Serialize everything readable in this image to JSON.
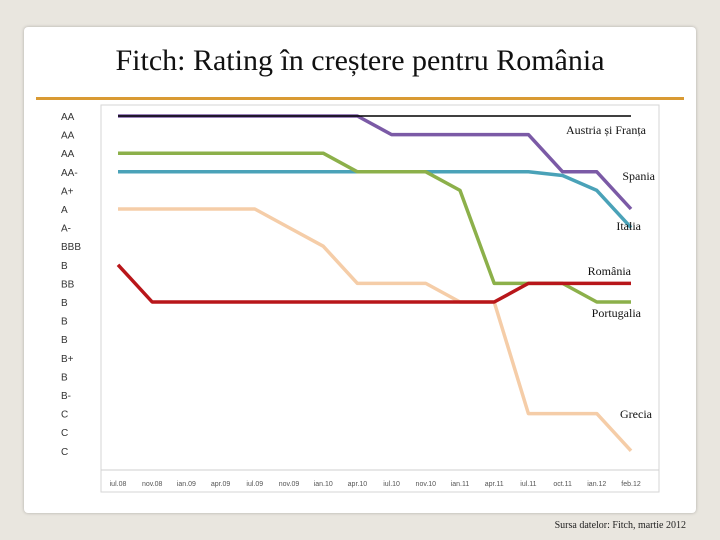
{
  "slide": {
    "title": "Fitch: Rating în creștere pentru România",
    "source": "Sursa datelor: Fitch, martie 2012"
  },
  "colors": {
    "rule": "#d99a33",
    "series": {
      "Austria și Franța": "#000000",
      "Spania": "#7b5aa6",
      "Italia": "#4aa2b8",
      "Portugalia": "#8cb04a",
      "România": "#b8161a",
      "Grecia": "#f5cda8"
    }
  },
  "chart_data": {
    "type": "line",
    "y_tick_labels": [
      "AA",
      "AA",
      "AA",
      "AA-",
      "A+",
      "A",
      "A-",
      "BBB",
      "B",
      "BB",
      "B",
      "B",
      "B",
      "B+",
      "B",
      "B-",
      "C",
      "C",
      "C"
    ],
    "x_tick_labels": [
      "iul.08",
      "nov.08",
      "ian.09",
      "apr.09",
      "iul.09",
      "nov.09",
      "ian.10",
      "apr.10",
      "iul.10",
      "nov.10",
      "ian.11",
      "apr.11",
      "iul.11",
      "oct.11",
      "ian.12",
      "feb.12"
    ],
    "grid": false,
    "legend": "series labels placed at line ends",
    "series": [
      {
        "name": "Austria și Franța",
        "values": [
          0,
          0,
          0,
          0,
          0,
          0,
          0,
          0,
          0,
          0,
          0,
          0,
          0,
          0,
          0,
          0
        ]
      },
      {
        "name": "Spania",
        "values": [
          0,
          0,
          0,
          0,
          0,
          0,
          0,
          0,
          1,
          1,
          1,
          1,
          1,
          3,
          3,
          5
        ]
      },
      {
        "name": "Italia",
        "values": [
          3,
          3,
          3,
          3,
          3,
          3,
          3,
          3,
          3,
          3,
          3,
          3,
          3,
          3.2,
          4,
          6
        ]
      },
      {
        "name": "Portugalia",
        "values": [
          2,
          2,
          2,
          2,
          2,
          2,
          2,
          3,
          3,
          3,
          4,
          9,
          9,
          9,
          10,
          10
        ]
      },
      {
        "name": "România",
        "values": [
          8,
          10,
          10,
          10,
          10,
          10,
          10,
          10,
          10,
          10,
          10,
          10,
          9,
          9,
          9,
          9
        ]
      },
      {
        "name": "Grecia",
        "values": [
          5,
          5,
          5,
          5,
          5,
          6,
          7,
          9,
          9,
          9,
          10,
          10,
          16,
          16,
          16,
          18
        ]
      }
    ]
  }
}
